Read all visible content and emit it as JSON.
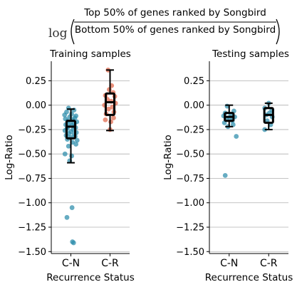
{
  "header": {
    "log_label": "log",
    "numerator": "Top 50% of genes ranked by Songbird",
    "denominator": "Bottom 50% of genes ranked by Songbird"
  },
  "chart_data": [
    {
      "type": "box-strip",
      "title": "Training samples",
      "xlabel": "Recurrence Status",
      "ylabel": "Log-Ratio",
      "categories": [
        "C-N",
        "C-R"
      ],
      "ylim": [
        -1.52,
        0.45
      ],
      "yticks": [
        0.25,
        0.0,
        -0.25,
        -0.5,
        -0.75,
        -1.0,
        -1.25,
        -1.5
      ],
      "ytick_labels": [
        "0.25",
        "0.00",
        "−0.25",
        "−0.50",
        "−0.75",
        "−1.00",
        "−1.25",
        "−1.50"
      ],
      "grid": "horizontal",
      "colors": {
        "C-N": "#2b8cab",
        "C-R": "#e06749"
      },
      "boxes": [
        {
          "category": "C-N",
          "whisker_low": -0.59,
          "q1": -0.34,
          "median": -0.22,
          "q3": -0.16,
          "whisker_high": -0.04
        },
        {
          "category": "C-R",
          "whisker_low": -0.26,
          "q1": -0.1,
          "median": 0.03,
          "q3": 0.12,
          "whisker_high": 0.36
        }
      ],
      "points": [
        {
          "category": "C-N",
          "y": -0.03,
          "dx": -0.06
        },
        {
          "category": "C-N",
          "y": -0.05,
          "dx": 0.08
        },
        {
          "category": "C-N",
          "y": -0.07,
          "dx": -0.11
        },
        {
          "category": "C-N",
          "y": -0.09,
          "dx": 0.02
        },
        {
          "category": "C-N",
          "y": -0.1,
          "dx": -0.16
        },
        {
          "category": "C-N",
          "y": -0.11,
          "dx": 0.13
        },
        {
          "category": "C-N",
          "y": -0.12,
          "dx": -0.03
        },
        {
          "category": "C-N",
          "y": -0.13,
          "dx": 0.1
        },
        {
          "category": "C-N",
          "y": -0.14,
          "dx": -0.14
        },
        {
          "category": "C-N",
          "y": -0.15,
          "dx": 0.05
        },
        {
          "category": "C-N",
          "y": -0.16,
          "dx": -0.08
        },
        {
          "category": "C-N",
          "y": -0.17,
          "dx": 0.15
        },
        {
          "category": "C-N",
          "y": -0.18,
          "dx": -0.02
        },
        {
          "category": "C-N",
          "y": -0.19,
          "dx": 0.09
        },
        {
          "category": "C-N",
          "y": -0.2,
          "dx": -0.13
        },
        {
          "category": "C-N",
          "y": -0.21,
          "dx": 0.03
        },
        {
          "category": "C-N",
          "y": -0.22,
          "dx": -0.07
        },
        {
          "category": "C-N",
          "y": -0.23,
          "dx": 0.12
        },
        {
          "category": "C-N",
          "y": -0.24,
          "dx": -0.1
        },
        {
          "category": "C-N",
          "y": -0.25,
          "dx": 0.06
        },
        {
          "category": "C-N",
          "y": -0.26,
          "dx": -0.15
        },
        {
          "category": "C-N",
          "y": -0.27,
          "dx": 0.0
        },
        {
          "category": "C-N",
          "y": -0.28,
          "dx": 0.14
        },
        {
          "category": "C-N",
          "y": -0.29,
          "dx": -0.05
        },
        {
          "category": "C-N",
          "y": -0.3,
          "dx": 0.08
        },
        {
          "category": "C-N",
          "y": -0.31,
          "dx": -0.12
        },
        {
          "category": "C-N",
          "y": -0.32,
          "dx": 0.11
        },
        {
          "category": "C-N",
          "y": -0.33,
          "dx": -0.01
        },
        {
          "category": "C-N",
          "y": -0.35,
          "dx": -0.09
        },
        {
          "category": "C-N",
          "y": -0.36,
          "dx": 0.16
        },
        {
          "category": "C-N",
          "y": -0.38,
          "dx": 0.04
        },
        {
          "category": "C-N",
          "y": -0.4,
          "dx": 0.13
        },
        {
          "category": "C-N",
          "y": -0.42,
          "dx": -0.06
        },
        {
          "category": "C-N",
          "y": -0.5,
          "dx": -0.15
        },
        {
          "category": "C-N",
          "y": -0.52,
          "dx": 0.02
        },
        {
          "category": "C-N",
          "y": -0.57,
          "dx": -0.03
        },
        {
          "category": "C-N",
          "y": -1.05,
          "dx": 0.03
        },
        {
          "category": "C-N",
          "y": -1.15,
          "dx": -0.1
        },
        {
          "category": "C-N",
          "y": -1.4,
          "dx": 0.04
        },
        {
          "category": "C-N",
          "y": -1.41,
          "dx": 0.07
        },
        {
          "category": "C-R",
          "y": 0.36,
          "dx": -0.05
        },
        {
          "category": "C-R",
          "y": 0.2,
          "dx": 0.04
        },
        {
          "category": "C-R",
          "y": 0.16,
          "dx": -0.02
        },
        {
          "category": "C-R",
          "y": 0.13,
          "dx": 0.08
        },
        {
          "category": "C-R",
          "y": 0.1,
          "dx": -0.12
        },
        {
          "category": "C-R",
          "y": 0.09,
          "dx": 0.12
        },
        {
          "category": "C-R",
          "y": 0.06,
          "dx": -0.07
        },
        {
          "category": "C-R",
          "y": 0.04,
          "dx": 0.03
        },
        {
          "category": "C-R",
          "y": 0.02,
          "dx": 0.14
        },
        {
          "category": "C-R",
          "y": 0.0,
          "dx": -0.14
        },
        {
          "category": "C-R",
          "y": -0.02,
          "dx": 0.06
        },
        {
          "category": "C-R",
          "y": -0.04,
          "dx": -0.04
        },
        {
          "category": "C-R",
          "y": -0.07,
          "dx": 0.1
        },
        {
          "category": "C-R",
          "y": -0.09,
          "dx": -0.1
        },
        {
          "category": "C-R",
          "y": -0.13,
          "dx": 0.09
        },
        {
          "category": "C-R",
          "y": -0.15,
          "dx": -0.12
        },
        {
          "category": "C-R",
          "y": -0.17,
          "dx": 0.02
        },
        {
          "category": "C-R",
          "y": -0.25,
          "dx": 0.0
        }
      ]
    },
    {
      "type": "box-strip",
      "title": "Testing samples",
      "xlabel": "Recurrence Status",
      "ylabel": "Log-Ratio",
      "categories": [
        "C-N",
        "C-R"
      ],
      "ylim": [
        -1.52,
        0.45
      ],
      "yticks": [
        0.25,
        0.0,
        -0.25,
        -0.5,
        -0.75,
        -1.0,
        -1.25,
        -1.5
      ],
      "ytick_labels": [
        "0.25",
        "0.00",
        "−0.25",
        "−0.50",
        "−0.75",
        "−1.00",
        "−1.25",
        "−1.50"
      ],
      "grid": "horizontal",
      "colors": {
        "C-N": "#2b8cab",
        "C-R": "#2b8cab"
      },
      "boxes": [
        {
          "category": "C-N",
          "whisker_low": -0.22,
          "q1": -0.16,
          "median": -0.12,
          "q3": -0.08,
          "whisker_high": 0.0
        },
        {
          "category": "C-R",
          "whisker_low": -0.25,
          "q1": -0.18,
          "median": -0.1,
          "q3": -0.03,
          "whisker_high": 0.02
        }
      ],
      "points": [
        {
          "category": "C-N",
          "y": -0.01,
          "dx": -0.05
        },
        {
          "category": "C-N",
          "y": -0.06,
          "dx": 0.12
        },
        {
          "category": "C-N",
          "y": -0.08,
          "dx": -0.1
        },
        {
          "category": "C-N",
          "y": -0.1,
          "dx": 0.04
        },
        {
          "category": "C-N",
          "y": -0.11,
          "dx": -0.14
        },
        {
          "category": "C-N",
          "y": -0.12,
          "dx": 0.14
        },
        {
          "category": "C-N",
          "y": -0.13,
          "dx": 0.02
        },
        {
          "category": "C-N",
          "y": -0.14,
          "dx": -0.07
        },
        {
          "category": "C-N",
          "y": -0.16,
          "dx": 0.08
        },
        {
          "category": "C-N",
          "y": -0.18,
          "dx": -0.12
        },
        {
          "category": "C-N",
          "y": -0.2,
          "dx": 0.1
        },
        {
          "category": "C-N",
          "y": -0.22,
          "dx": -0.03
        },
        {
          "category": "C-N",
          "y": -0.32,
          "dx": 0.18
        },
        {
          "category": "C-N",
          "y": -0.72,
          "dx": -0.1
        },
        {
          "category": "C-R",
          "y": 0.02,
          "dx": 0.0
        },
        {
          "category": "C-R",
          "y": -0.03,
          "dx": -0.1
        },
        {
          "category": "C-R",
          "y": -0.05,
          "dx": 0.08
        },
        {
          "category": "C-R",
          "y": -0.08,
          "dx": 0.02
        },
        {
          "category": "C-R",
          "y": -0.1,
          "dx": -0.06
        },
        {
          "category": "C-R",
          "y": -0.12,
          "dx": 0.09
        },
        {
          "category": "C-R",
          "y": -0.16,
          "dx": -0.04
        },
        {
          "category": "C-R",
          "y": -0.2,
          "dx": 0.05
        },
        {
          "category": "C-R",
          "y": -0.25,
          "dx": -0.1
        }
      ]
    }
  ]
}
